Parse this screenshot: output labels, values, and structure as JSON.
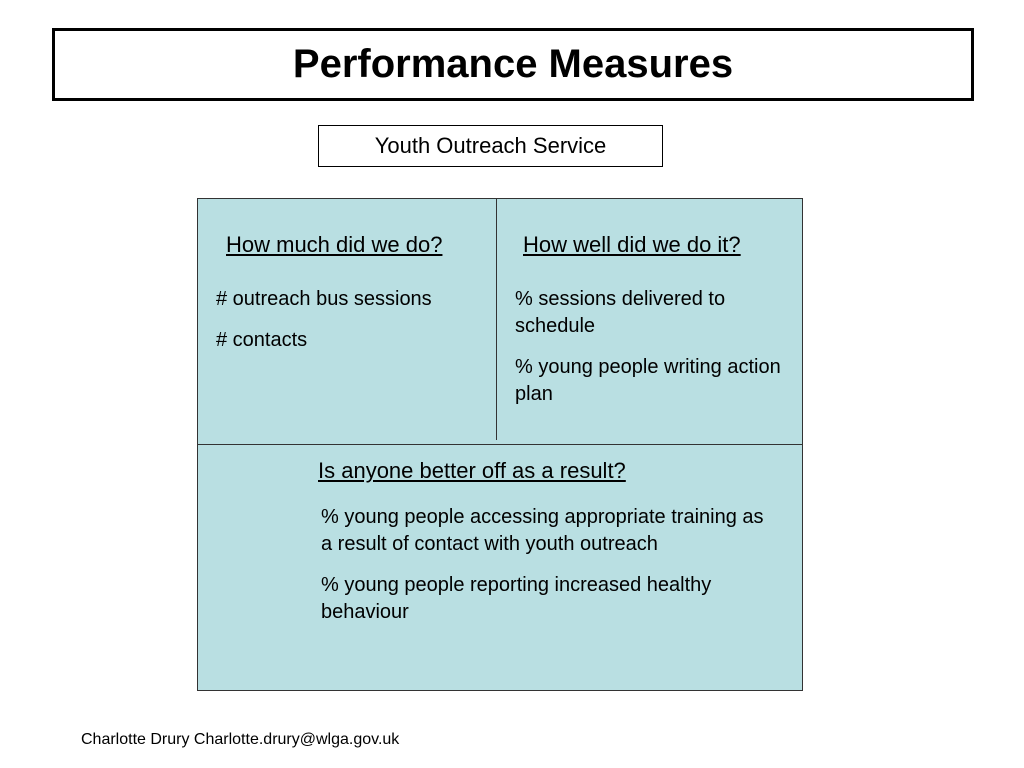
{
  "slide": {
    "title": "Performance Measures",
    "subtitle": "Youth Outreach Service",
    "quadrants": {
      "how_much": {
        "heading": "How much did we do?",
        "items": [
          "# outreach bus sessions",
          "# contacts"
        ]
      },
      "how_well": {
        "heading": "How well did we do it?",
        "items": [
          "% sessions delivered to schedule",
          "% young people writing action plan"
        ]
      },
      "better_off": {
        "heading": "Is anyone better off as a result?",
        "items": [
          "% young people accessing appropriate training as a result of contact with youth outreach",
          "% young people reporting increased healthy behaviour"
        ]
      }
    },
    "footer": "Charlotte Drury Charlotte.drury@wlga.gov.uk"
  },
  "colors": {
    "panel_fill": "#b9dfe2",
    "border": "#000000"
  }
}
